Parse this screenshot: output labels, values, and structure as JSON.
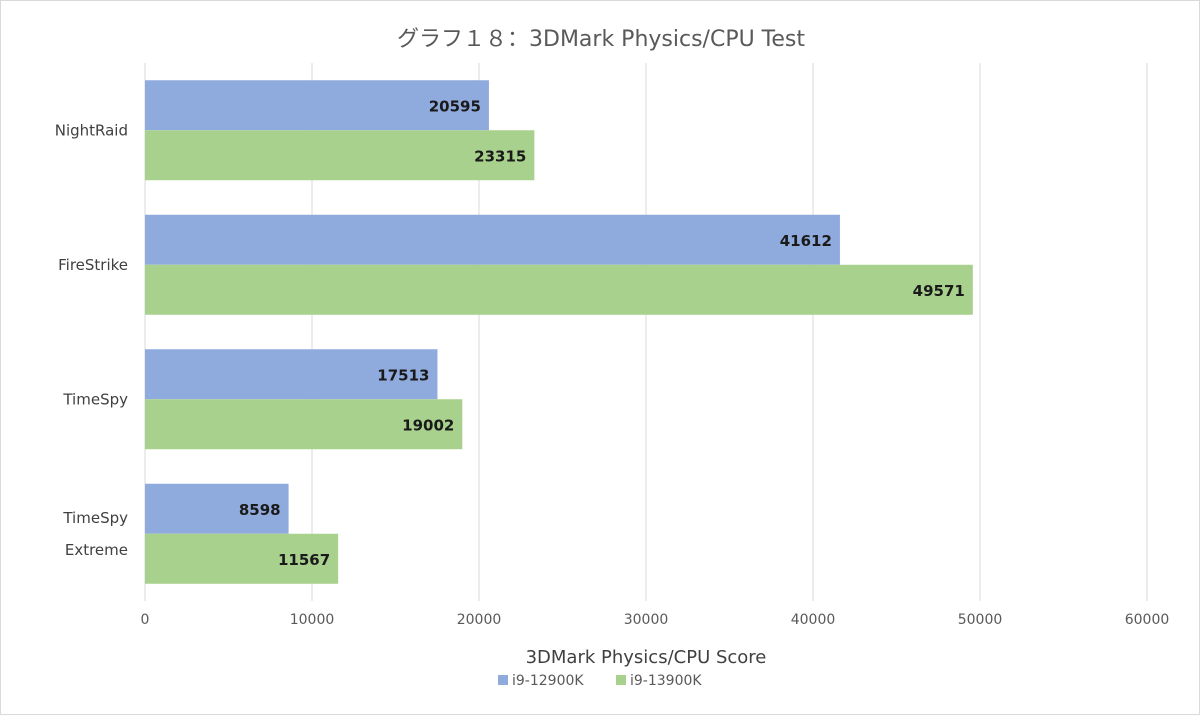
{
  "chart_data": {
    "type": "bar",
    "orientation": "horizontal",
    "title": "グラフ１８：3DMark Physics/CPU Test",
    "xlabel": "3DMark Physics/CPU Score",
    "ylabel": "",
    "xlim": [
      0,
      60000
    ],
    "xticks": [
      0,
      10000,
      20000,
      30000,
      40000,
      50000,
      60000
    ],
    "categories": [
      [
        "NightRaid"
      ],
      [
        "FireStrike"
      ],
      [
        "TimeSpy"
      ],
      [
        "TimeSpy",
        "Extreme"
      ]
    ],
    "series": [
      {
        "name": "i9-12900K",
        "color": "#8faadc",
        "values": [
          20595,
          41612,
          17513,
          8598
        ]
      },
      {
        "name": "i9-13900K",
        "color": "#a9d18e",
        "values": [
          23315,
          49571,
          19002,
          11567
        ]
      }
    ],
    "grid": true,
    "legend_position": "bottom",
    "data_labels": true
  }
}
